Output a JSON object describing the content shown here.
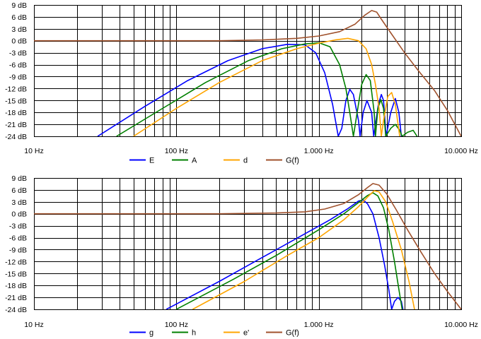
{
  "chart_data": [
    {
      "type": "line",
      "x_scale": "log",
      "xlim": [
        10,
        10000
      ],
      "ylim": [
        -24,
        9
      ],
      "y_ticks": [
        "9 dB",
        "6 dB",
        "3 dB",
        "0 dB",
        "-3 dB",
        "-6 dB",
        "-9 dB",
        "-12 dB",
        "-15 dB",
        "-18 dB",
        "-21 dB",
        "-24 dB"
      ],
      "x_ticks": [
        {
          "value": 10,
          "label": "10 Hz"
        },
        {
          "value": 100,
          "label": "100 Hz"
        },
        {
          "value": 1000,
          "label": "1.000 Hz"
        },
        {
          "value": 10000,
          "label": "10.000 Hz"
        }
      ],
      "grid": true,
      "legend_position": "bottom",
      "series": [
        {
          "name": "E",
          "color": "#0000ff",
          "points": [
            [
              28,
              -24
            ],
            [
              60,
              -16.5
            ],
            [
              120,
              -10
            ],
            [
              230,
              -5
            ],
            [
              400,
              -2
            ],
            [
              600,
              -0.9
            ],
            [
              800,
              -1
            ],
            [
              950,
              -3
            ],
            [
              1100,
              -8
            ],
            [
              1250,
              -16
            ],
            [
              1370,
              -24
            ],
            [
              1450,
              -22
            ],
            [
              1550,
              -15
            ],
            [
              1650,
              -12.2
            ],
            [
              1750,
              -13.5
            ],
            [
              1900,
              -20
            ],
            [
              1950,
              -24
            ],
            [
              2050,
              -18
            ],
            [
              2180,
              -15
            ],
            [
              2350,
              -18
            ],
            [
              2430,
              -24
            ],
            [
              2620,
              -16
            ],
            [
              2750,
              -13.5
            ],
            [
              2850,
              -15
            ],
            [
              2970,
              -24
            ],
            [
              3200,
              -18
            ],
            [
              3450,
              -14.5
            ],
            [
              3650,
              -18
            ],
            [
              3800,
              -24
            ]
          ]
        },
        {
          "name": "A",
          "color": "#008000",
          "points": [
            [
              38,
              -24
            ],
            [
              80,
              -17
            ],
            [
              160,
              -10.5
            ],
            [
              320,
              -5
            ],
            [
              550,
              -2
            ],
            [
              800,
              -0.8
            ],
            [
              1000,
              -0.5
            ],
            [
              1200,
              -1.5
            ],
            [
              1400,
              -6
            ],
            [
              1550,
              -12
            ],
            [
              1650,
              -18
            ],
            [
              1750,
              -24
            ],
            [
              1860,
              -18
            ],
            [
              2000,
              -11
            ],
            [
              2150,
              -8.5
            ],
            [
              2300,
              -10
            ],
            [
              2450,
              -18
            ],
            [
              2500,
              -24
            ],
            [
              2600,
              -17
            ],
            [
              2730,
              -14.8
            ],
            [
              2850,
              -17
            ],
            [
              2950,
              -24
            ],
            [
              3200,
              -22
            ],
            [
              3450,
              -21
            ],
            [
              3700,
              -22.5
            ],
            [
              3850,
              -24
            ],
            [
              4200,
              -23
            ],
            [
              4600,
              -22.5
            ],
            [
              4900,
              -24
            ]
          ]
        },
        {
          "name": "d",
          "color": "#ffa500",
          "points": [
            [
              50,
              -24
            ],
            [
              100,
              -17
            ],
            [
              200,
              -10.5
            ],
            [
              400,
              -5
            ],
            [
              700,
              -2
            ],
            [
              1000,
              -0.6
            ],
            [
              1300,
              0.2
            ],
            [
              1600,
              0.6
            ],
            [
              1900,
              0
            ],
            [
              2150,
              -2
            ],
            [
              2350,
              -6
            ],
            [
              2500,
              -11
            ],
            [
              2650,
              -17
            ],
            [
              2750,
              -24
            ],
            [
              2850,
              -20
            ],
            [
              3050,
              -14
            ],
            [
              3250,
              -13
            ],
            [
              3450,
              -16
            ],
            [
              3600,
              -21
            ],
            [
              3700,
              -24
            ]
          ]
        },
        {
          "name": "G(f)",
          "color": "#a0522d",
          "points": [
            [
              10,
              0
            ],
            [
              200,
              0
            ],
            [
              400,
              0.2
            ],
            [
              700,
              0.6
            ],
            [
              1000,
              1.2
            ],
            [
              1400,
              2.3
            ],
            [
              1800,
              4.2
            ],
            [
              2100,
              6.4
            ],
            [
              2350,
              7.6
            ],
            [
              2550,
              7.2
            ],
            [
              2800,
              5
            ],
            [
              3200,
              2
            ],
            [
              4000,
              -3
            ],
            [
              5000,
              -7.5
            ],
            [
              6500,
              -12.5
            ],
            [
              8000,
              -17.5
            ],
            [
              10000,
              -24
            ]
          ]
        }
      ]
    },
    {
      "type": "line",
      "x_scale": "log",
      "xlim": [
        10,
        10000
      ],
      "ylim": [
        -24,
        9
      ],
      "y_ticks": [
        "9 dB",
        "6 dB",
        "3 dB",
        "0 dB",
        "-3 dB",
        "-6 dB",
        "-9 dB",
        "-12 dB",
        "-15 dB",
        "-18 dB",
        "-21 dB",
        "-24 dB"
      ],
      "x_ticks": [
        {
          "value": 10,
          "label": "10 Hz"
        },
        {
          "value": 100,
          "label": "100 Hz"
        },
        {
          "value": 1000,
          "label": "1.000 Hz"
        },
        {
          "value": 10000,
          "label": "10.000 Hz"
        }
      ],
      "grid": true,
      "legend_position": "bottom",
      "series": [
        {
          "name": "g",
          "color": "#0000ff",
          "points": [
            [
              85,
              -24
            ],
            [
              200,
              -17
            ],
            [
              400,
              -11
            ],
            [
              800,
              -5
            ],
            [
              1200,
              -1.5
            ],
            [
              1600,
              1.3
            ],
            [
              1900,
              3.2
            ],
            [
              2050,
              3.5
            ],
            [
              2200,
              2.5
            ],
            [
              2400,
              0
            ],
            [
              2650,
              -6
            ],
            [
              2900,
              -13
            ],
            [
              3100,
              -19
            ],
            [
              3250,
              -24
            ],
            [
              3400,
              -22
            ],
            [
              3600,
              -21
            ],
            [
              3800,
              -22
            ],
            [
              3900,
              -24
            ]
          ]
        },
        {
          "name": "h",
          "color": "#008000",
          "points": [
            [
              100,
              -24
            ],
            [
              250,
              -16.5
            ],
            [
              500,
              -10.5
            ],
            [
              1000,
              -4
            ],
            [
              1500,
              0
            ],
            [
              1900,
              2.8
            ],
            [
              2200,
              4.6
            ],
            [
              2400,
              5.3
            ],
            [
              2600,
              4.5
            ],
            [
              2850,
              1.5
            ],
            [
              3100,
              -4
            ],
            [
              3400,
              -12
            ],
            [
              3650,
              -19
            ],
            [
              3850,
              -24
            ]
          ]
        },
        {
          "name": "e'",
          "color": "#ffa500",
          "points": [
            [
              130,
              -24
            ],
            [
              300,
              -17
            ],
            [
              600,
              -10.5
            ],
            [
              1000,
              -6
            ],
            [
              1500,
              -1.5
            ],
            [
              1900,
              1.8
            ],
            [
              2200,
              4.2
            ],
            [
              2450,
              5.8
            ],
            [
              2650,
              5.5
            ],
            [
              2950,
              3
            ],
            [
              3300,
              -2
            ],
            [
              3800,
              -9
            ],
            [
              4300,
              -17
            ],
            [
              4700,
              -24
            ]
          ]
        },
        {
          "name": "G(f)",
          "color": "#a0522d",
          "points": [
            [
              10,
              0
            ],
            [
              200,
              0
            ],
            [
              500,
              0.2
            ],
            [
              800,
              0.5
            ],
            [
              1100,
              1.2
            ],
            [
              1500,
              2.6
            ],
            [
              1900,
              4.8
            ],
            [
              2200,
              6.6
            ],
            [
              2400,
              7.6
            ],
            [
              2650,
              7.2
            ],
            [
              3000,
              5
            ],
            [
              3500,
              1
            ],
            [
              4200,
              -4
            ],
            [
              5200,
              -9.5
            ],
            [
              6500,
              -15
            ],
            [
              8000,
              -19.5
            ],
            [
              10000,
              -24
            ]
          ]
        }
      ]
    }
  ]
}
